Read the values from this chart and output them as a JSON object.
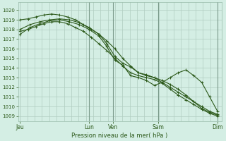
{
  "title": "Pression niveau de la mer( hPa )",
  "bg_color": "#d4eee4",
  "grid_color": "#b0ccc0",
  "line_color": "#2d5a1b",
  "ylim": [
    1008.5,
    1020.8
  ],
  "yticks": [
    1009,
    1010,
    1011,
    1012,
    1013,
    1014,
    1015,
    1016,
    1017,
    1018,
    1019,
    1020
  ],
  "xtick_labels": [
    "Jeu",
    "Lun",
    "Ven",
    "Sam",
    "Dim"
  ],
  "xtick_positions": [
    0,
    0.35,
    0.47,
    0.7,
    1.0
  ],
  "day_vlines": [
    0.35,
    0.47,
    0.7,
    1.0
  ],
  "line1_x": [
    0.0,
    0.04,
    0.08,
    0.12,
    0.16,
    0.2,
    0.24,
    0.28,
    0.32,
    0.36,
    0.4,
    0.44,
    0.48,
    0.52,
    0.56,
    0.6,
    0.64,
    0.68,
    0.72,
    0.76,
    0.8,
    0.84,
    0.88,
    0.92,
    0.96,
    1.0
  ],
  "line1_y": [
    1019.0,
    1019.1,
    1019.3,
    1019.5,
    1019.6,
    1019.5,
    1019.3,
    1019.0,
    1018.5,
    1018.0,
    1017.5,
    1016.8,
    1016.0,
    1015.0,
    1014.2,
    1013.5,
    1013.2,
    1013.0,
    1012.5,
    1012.0,
    1011.5,
    1011.0,
    1010.5,
    1010.0,
    1009.5,
    1009.2
  ],
  "line2_x": [
    0.0,
    0.04,
    0.08,
    0.12,
    0.16,
    0.2,
    0.24,
    0.28,
    0.32,
    0.36,
    0.4,
    0.44,
    0.48,
    0.52,
    0.56,
    0.6,
    0.64,
    0.68,
    0.72,
    0.76,
    0.8,
    0.84,
    0.88,
    0.92,
    0.96,
    1.0
  ],
  "line2_y": [
    1017.8,
    1018.0,
    1018.3,
    1018.6,
    1018.8,
    1018.8,
    1018.6,
    1018.2,
    1017.8,
    1017.2,
    1016.5,
    1015.8,
    1015.0,
    1014.2,
    1013.5,
    1013.2,
    1013.0,
    1012.8,
    1012.4,
    1011.8,
    1011.2,
    1010.7,
    1010.2,
    1009.7,
    1009.3,
    1009.0
  ],
  "line3_x": [
    0.0,
    0.05,
    0.1,
    0.15,
    0.2,
    0.25,
    0.3,
    0.35,
    0.4,
    0.44,
    0.48,
    0.52,
    0.56,
    0.6,
    0.64,
    0.68,
    0.72,
    0.76,
    0.8,
    0.84,
    0.88,
    0.92,
    0.96,
    1.0
  ],
  "line3_y": [
    1017.5,
    1018.2,
    1018.6,
    1018.9,
    1019.0,
    1018.8,
    1018.5,
    1018.0,
    1017.3,
    1016.2,
    1014.8,
    1014.3,
    1013.2,
    1013.0,
    1012.7,
    1012.2,
    1012.5,
    1013.0,
    1013.5,
    1013.8,
    1013.2,
    1012.5,
    1011.0,
    1009.5
  ],
  "line4_x": [
    0.0,
    0.05,
    0.1,
    0.15,
    0.2,
    0.25,
    0.3,
    0.35,
    0.4,
    0.44,
    0.48,
    0.52,
    0.56,
    0.6,
    0.64,
    0.68,
    0.72,
    0.76,
    0.8,
    0.84,
    0.88,
    0.92,
    0.96,
    1.0
  ],
  "line4_y": [
    1018.0,
    1018.5,
    1018.8,
    1019.0,
    1019.1,
    1019.0,
    1018.7,
    1018.2,
    1017.5,
    1016.5,
    1015.2,
    1014.5,
    1014.1,
    1013.5,
    1013.3,
    1013.0,
    1012.7,
    1012.3,
    1011.8,
    1011.2,
    1010.5,
    1009.8,
    1009.4,
    1009.1
  ]
}
